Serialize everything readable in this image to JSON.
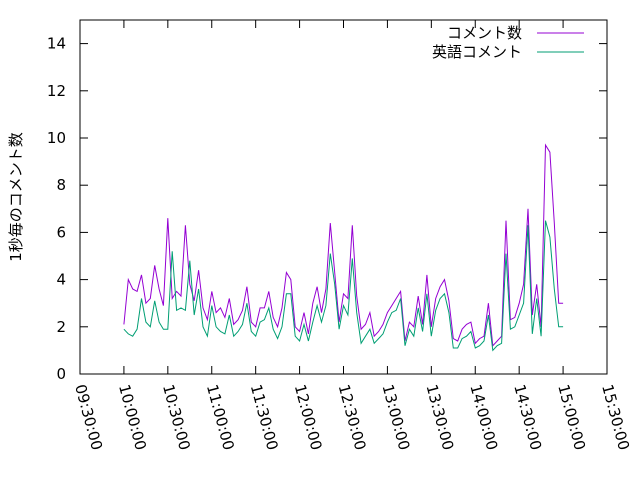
{
  "chart_data": {
    "type": "line",
    "ylabel": "1秒毎のコメント数",
    "xlabel": "",
    "ylim": [
      0,
      15
    ],
    "yticks": [
      0,
      2,
      4,
      6,
      8,
      10,
      12,
      14
    ],
    "xlim": [
      "09:30:00",
      "15:30:00"
    ],
    "xtick_labels": [
      "09:30:00",
      "10:00:00",
      "10:30:00",
      "11:00:00",
      "11:30:00",
      "12:00:00",
      "12:30:00",
      "13:00:00",
      "13:30:00",
      "14:00:00",
      "14:30:00",
      "15:00:00",
      "15:30:00"
    ],
    "legend_position": "top-right",
    "grid": false,
    "x": [
      "10:00:00",
      "10:03:00",
      "10:06:00",
      "10:09:00",
      "10:12:00",
      "10:15:00",
      "10:18:00",
      "10:21:00",
      "10:24:00",
      "10:27:00",
      "10:30:00",
      "10:33:00",
      "10:36:00",
      "10:39:00",
      "10:42:00",
      "10:45:00",
      "10:48:00",
      "10:51:00",
      "10:54:00",
      "10:57:00",
      "11:00:00",
      "11:03:00",
      "11:06:00",
      "11:09:00",
      "11:12:00",
      "11:15:00",
      "11:18:00",
      "11:21:00",
      "11:24:00",
      "11:27:00",
      "11:30:00",
      "11:33:00",
      "11:36:00",
      "11:39:00",
      "11:42:00",
      "11:45:00",
      "11:48:00",
      "11:51:00",
      "11:54:00",
      "11:57:00",
      "12:00:00",
      "12:03:00",
      "12:06:00",
      "12:09:00",
      "12:12:00",
      "12:15:00",
      "12:18:00",
      "12:21:00",
      "12:24:00",
      "12:27:00",
      "12:30:00",
      "12:33:00",
      "12:36:00",
      "12:39:00",
      "12:42:00",
      "12:45:00",
      "12:48:00",
      "12:51:00",
      "12:54:00",
      "12:57:00",
      "13:00:00",
      "13:03:00",
      "13:06:00",
      "13:09:00",
      "13:12:00",
      "13:15:00",
      "13:18:00",
      "13:21:00",
      "13:24:00",
      "13:27:00",
      "13:30:00",
      "13:33:00",
      "13:36:00",
      "13:39:00",
      "13:42:00",
      "13:45:00",
      "13:48:00",
      "13:51:00",
      "13:54:00",
      "13:57:00",
      "14:00:00",
      "14:03:00",
      "14:06:00",
      "14:09:00",
      "14:12:00",
      "14:15:00",
      "14:18:00",
      "14:21:00",
      "14:24:00",
      "14:27:00",
      "14:30:00",
      "14:33:00",
      "14:36:00",
      "14:39:00",
      "14:42:00",
      "14:45:00",
      "14:48:00",
      "14:51:00",
      "14:54:00",
      "14:57:00",
      "15:00:00"
    ],
    "series": [
      {
        "name": "コメント数",
        "color": "#9400d3",
        "values": [
          2.1,
          4.0,
          3.6,
          3.5,
          4.2,
          3.0,
          3.2,
          4.6,
          3.6,
          2.9,
          6.6,
          3.2,
          3.5,
          3.3,
          6.3,
          3.8,
          3.1,
          4.4,
          2.8,
          2.3,
          3.5,
          2.6,
          2.8,
          2.4,
          3.2,
          2.1,
          2.3,
          2.7,
          3.7,
          2.2,
          2.0,
          2.8,
          2.8,
          3.5,
          2.4,
          2.0,
          2.8,
          4.3,
          4.0,
          2.0,
          1.8,
          2.6,
          1.7,
          3.0,
          3.7,
          2.6,
          3.6,
          6.4,
          4.3,
          2.2,
          3.4,
          3.2,
          6.3,
          3.3,
          1.9,
          2.1,
          2.6,
          1.6,
          1.8,
          2.1,
          2.6,
          2.9,
          3.2,
          3.5,
          1.4,
          2.2,
          2.0,
          3.3,
          2.1,
          4.2,
          2.0,
          3.2,
          3.7,
          4.0,
          3.1,
          1.5,
          1.4,
          1.9,
          2.1,
          2.2,
          1.3,
          1.5,
          1.6,
          3.0,
          1.2,
          1.4,
          1.6,
          6.5,
          2.3,
          2.4,
          3.0,
          3.8,
          7.0,
          2.5,
          3.8,
          2.0,
          9.7,
          9.4,
          6.4,
          3.0,
          3.0
        ]
      },
      {
        "name": "英語コメント",
        "color": "#009e73",
        "values": [
          1.9,
          1.7,
          1.6,
          1.9,
          3.2,
          2.2,
          2.0,
          3.1,
          2.2,
          1.9,
          1.9,
          5.2,
          2.7,
          2.8,
          2.7,
          4.8,
          2.5,
          3.6,
          2.0,
          1.6,
          2.9,
          2.0,
          1.8,
          1.7,
          2.5,
          1.6,
          1.8,
          2.1,
          3.0,
          1.8,
          1.6,
          2.2,
          2.3,
          2.8,
          1.9,
          1.5,
          2.0,
          3.4,
          3.4,
          1.6,
          1.4,
          2.1,
          1.4,
          2.2,
          2.9,
          2.2,
          2.9,
          5.1,
          3.8,
          1.9,
          2.9,
          2.5,
          4.9,
          2.6,
          1.3,
          1.6,
          1.9,
          1.3,
          1.5,
          1.7,
          2.2,
          2.6,
          2.7,
          3.2,
          1.2,
          1.9,
          1.6,
          2.8,
          1.8,
          3.4,
          1.6,
          2.7,
          3.2,
          3.4,
          2.6,
          1.1,
          1.1,
          1.5,
          1.6,
          1.8,
          1.1,
          1.2,
          1.4,
          2.5,
          1.0,
          1.2,
          1.3,
          5.1,
          1.9,
          2.0,
          2.5,
          3.0,
          6.3,
          1.7,
          3.2,
          1.6,
          6.5,
          5.8,
          3.6,
          2.0,
          2.0
        ]
      }
    ]
  }
}
